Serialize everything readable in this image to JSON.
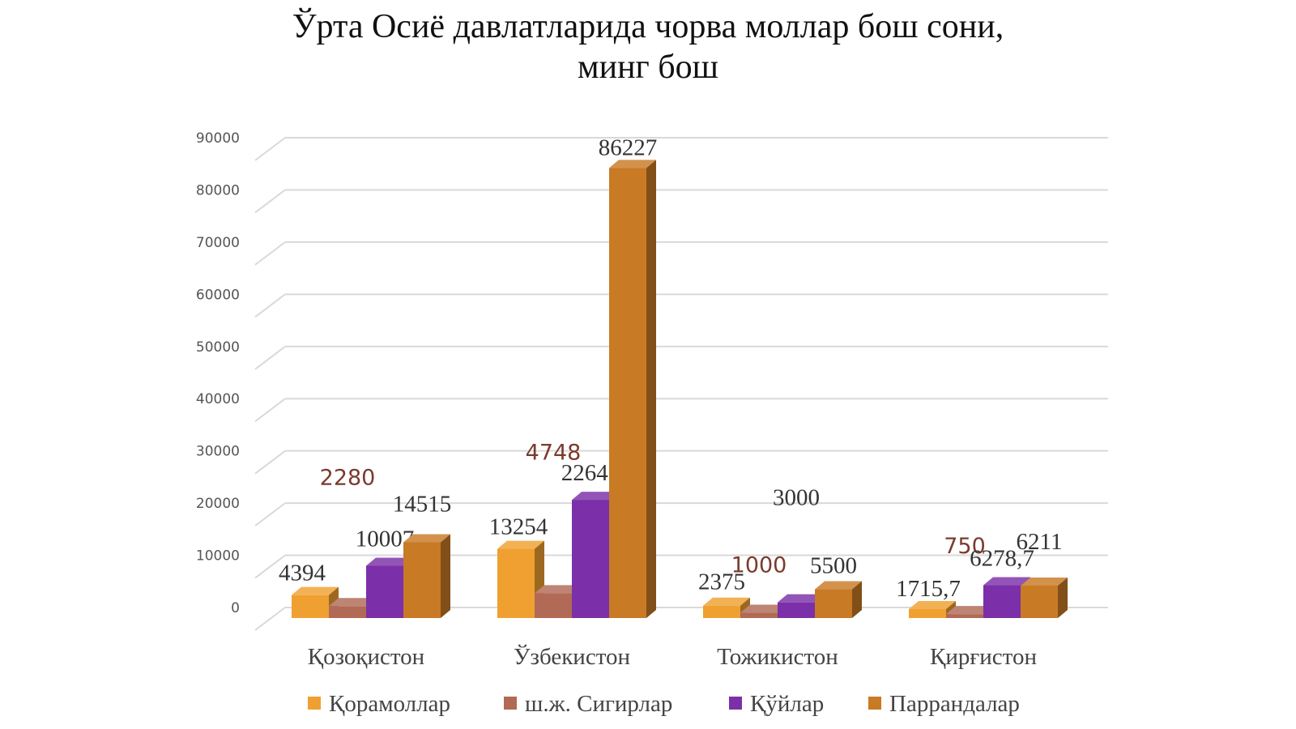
{
  "chart_data": {
    "type": "bar",
    "title_line1": "Ўрта Осиё давлатларида чорва моллар бош сони,",
    "title_line2": "минг бош",
    "categories": [
      "Қозоқистон",
      "Ўзбекистон",
      "Тожикистон",
      "Қирғистон"
    ],
    "series": [
      {
        "name": "Қорамоллар",
        "color": "#f0a030",
        "values": [
          4394,
          13254,
          2375,
          1715.7
        ],
        "labels": [
          "4394",
          "13254",
          "2375",
          "1715,7"
        ]
      },
      {
        "name": "ш.ж. Сигирлар",
        "color": "#b06a55",
        "values": [
          2280,
          4748,
          1000,
          750
        ],
        "labels": [
          "2280",
          "4748",
          "1000",
          "750"
        ]
      },
      {
        "name": "Қўйлар",
        "color": "#7b2fa8",
        "values": [
          10007,
          22642,
          3000,
          6278.7
        ],
        "labels": [
          "10007",
          "22642",
          "3000",
          "6278,7"
        ]
      },
      {
        "name": "Паррандалар",
        "color": "#c87a25",
        "values": [
          14515,
          86227,
          5500,
          6211
        ],
        "labels": [
          "14515",
          "86227",
          "5500",
          "6211"
        ]
      }
    ],
    "ylim": [
      0,
      90000
    ],
    "yticks": [
      "0",
      "10000",
      "20000",
      "30000",
      "40000",
      "50000",
      "60000",
      "70000",
      "80000",
      "90000"
    ],
    "grid": true,
    "legend_position": "bottom",
    "style": "3d-column"
  }
}
